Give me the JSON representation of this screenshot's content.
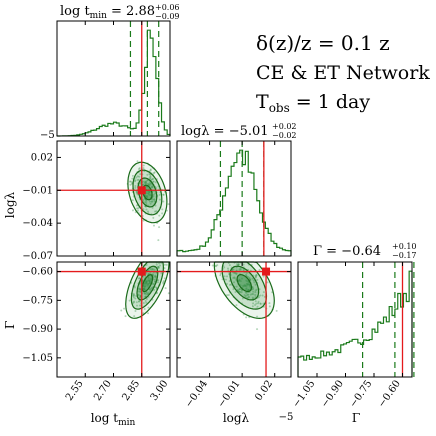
{
  "annotation": {
    "line1": "δ(z)/z = 0.1 z",
    "line2": "CE & ET Network",
    "line3_main": "T",
    "line3_sub": "obs",
    "line3_rest": " = 1 day"
  },
  "titles": {
    "tmin": {
      "lhs": "log t",
      "sub": "min",
      "eq": " = 2.88",
      "up": "+0.06",
      "dn": "−0.09"
    },
    "lambda": {
      "lhs": "logλ = −5.01",
      "up": "+0.02",
      "dn": "−0.02"
    },
    "gamma": {
      "lhs": "Γ = −0.64",
      "up": "+0.10",
      "dn": "−0.17"
    }
  },
  "axes": {
    "xlabel_tmin_main": "log t",
    "xlabel_tmin_sub": "min",
    "xlabel_lambda": "logλ",
    "xlabel_lambda_offset": "−5",
    "xlabel_gamma": "Γ",
    "ylabel_lambda": "logλ",
    "ylabel_gamma": "Γ",
    "corner_offset": "−5"
  },
  "chart_data": {
    "type": "corner",
    "parameters": [
      "log t_min",
      "logλ",
      "Γ"
    ],
    "truths": {
      "log_tmin": 2.85,
      "logλ_offset": 0.01,
      "Γ": -0.6
    },
    "ranges": {
      "log_tmin": [
        2.4,
        3.0
      ],
      "logλ_offset": [
        -0.07,
        0.035
      ],
      "Γ": [
        -1.15,
        -0.55
      ]
    },
    "ticks": {
      "log_tmin": [
        "2.55",
        "2.70",
        "2.85",
        "3.00"
      ],
      "logλ": [
        "−0.04",
        "−0.01",
        "0.02"
      ],
      "logλ_y": [
        "0.02",
        "−0.01",
        "−0.04",
        "−0.07"
      ],
      "Γ_x": [
        "−1.05",
        "−0.90",
        "−0.75",
        "−0.60"
      ],
      "Γ_y": [
        "−0.60",
        "−0.75",
        "−0.90",
        "−1.05"
      ]
    },
    "quantiles": {
      "log_tmin": [
        2.79,
        2.88,
        2.94
      ],
      "logλ": [
        -0.03,
        -0.01,
        0.01
      ],
      "Γ": [
        -0.81,
        -0.64,
        -0.54
      ]
    },
    "colors": {
      "hist": "#1a7a1a",
      "truth": "#e41a1c",
      "fill": "#2e8b3e"
    }
  }
}
